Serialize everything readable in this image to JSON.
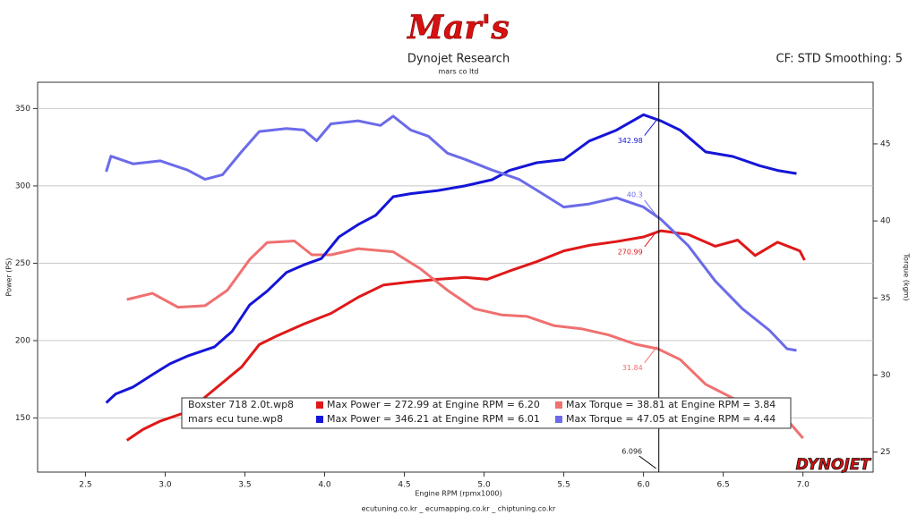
{
  "logo": "Mar's",
  "brand": "DYNOJET",
  "chart_data": {
    "type": "line",
    "title": "Dynojet Research",
    "subtitle": "mars co ltd",
    "settings_label": "CF: STD Smoothing: 5",
    "footer": "ecutuning.co.kr _ ecumapping.co.kr _ chiptuning.co.kr",
    "x_label": "Engine RPM (rpmx1000)",
    "y_label": "Power (PS)",
    "y2_label": "Torque (kgm)",
    "xlim": [
      2.2,
      7.44
    ],
    "ylim": [
      115,
      367
    ],
    "y2lim": [
      23.7,
      49
    ],
    "xticks": [
      2.5,
      {
        "value": 3,
        "label": "3.0"
      },
      3.5,
      {
        "value": 4,
        "label": "4.0"
      },
      4.5,
      {
        "value": 5,
        "label": "5.0"
      },
      5.5,
      {
        "value": 6,
        "label": "6.0"
      },
      6.5,
      {
        "value": 7,
        "label": "7.0"
      }
    ],
    "yticks": [
      150,
      200,
      250,
      300,
      350
    ],
    "y2ticks": [
      25,
      30,
      35,
      40,
      45
    ],
    "grid": true,
    "cursor_x": 6.096,
    "files": [
      "Boxster 718 2.0t.wp8",
      "mars ecu tune.wp8"
    ],
    "series": [
      {
        "name": "Max Power = 272.99 at Engine RPM = 6.20",
        "file": 0,
        "color": "#e01818",
        "axis": "y",
        "cursor_value": 270.99,
        "x": [
          2.76,
          2.86,
          2.97,
          3.14,
          3.31,
          3.48,
          3.59,
          3.7,
          3.87,
          4.04,
          4.21,
          4.37,
          4.54,
          4.71,
          4.88,
          5.02,
          5.16,
          5.33,
          5.5,
          5.66,
          5.83,
          6.0,
          6.11,
          6.28,
          6.45,
          6.59,
          6.7,
          6.84,
          6.98,
          7.01
        ],
        "values": [
          135.5,
          142.5,
          148,
          154,
          168.5,
          183,
          197.4,
          203,
          210.7,
          217.6,
          228,
          236,
          238,
          239.6,
          240.8,
          239.6,
          245,
          251,
          258,
          261.6,
          264,
          267,
          271,
          268.6,
          261,
          265,
          255,
          263.6,
          258,
          252
        ]
      },
      {
        "name": "Max Torque = 38.81 at Engine RPM = 3.84",
        "file": 0,
        "color": "#f07070",
        "axis": "y2",
        "cursor_value": 31.84,
        "x": [
          2.76,
          2.92,
          3.08,
          3.25,
          3.39,
          3.53,
          3.64,
          3.81,
          3.92,
          4.04,
          4.21,
          4.43,
          4.6,
          4.77,
          4.94,
          5.11,
          5.27,
          5.44,
          5.61,
          5.78,
          5.95,
          6.09,
          6.23,
          6.39,
          6.56,
          6.73,
          6.9,
          7.0
        ],
        "values": [
          34.9,
          35.3,
          34.4,
          34.5,
          35.5,
          37.5,
          38.6,
          38.7,
          37.8,
          37.8,
          38.2,
          38.0,
          36.9,
          35.5,
          34.3,
          33.9,
          33.8,
          33.2,
          33.0,
          32.6,
          32.0,
          31.7,
          31.0,
          29.4,
          28.5,
          27.7,
          27.1,
          25.9
        ]
      },
      {
        "name": "Max Power = 346.21 at Engine RPM = 6.01",
        "file": 1,
        "color": "#1515d8",
        "axis": "y",
        "cursor_value": 342.98,
        "x": [
          2.63,
          2.69,
          2.8,
          2.92,
          3.03,
          3.14,
          3.31,
          3.42,
          3.53,
          3.64,
          3.76,
          3.87,
          3.98,
          4.09,
          4.21,
          4.32,
          4.43,
          4.54,
          4.71,
          4.88,
          5.05,
          5.16,
          5.33,
          5.5,
          5.66,
          5.83,
          6.0,
          6.11,
          6.23,
          6.39,
          6.56,
          6.73,
          6.84,
          6.96
        ],
        "values": [
          159.8,
          165.5,
          170,
          178,
          185,
          190,
          196,
          206,
          223,
          232,
          244,
          249,
          253,
          267,
          275,
          281,
          293,
          295,
          297,
          300,
          304,
          310,
          315,
          317,
          329,
          336,
          346,
          342,
          336,
          322,
          319,
          313,
          310,
          308
        ]
      },
      {
        "name": "Max Torque = 47.05 at Engine RPM = 4.44",
        "file": 1,
        "color": "#6b6bea",
        "axis": "y2",
        "cursor_value": 40.3,
        "x": [
          2.63,
          2.66,
          2.8,
          2.97,
          3.14,
          3.25,
          3.36,
          3.48,
          3.59,
          3.76,
          3.87,
          3.95,
          4.04,
          4.21,
          4.35,
          4.43,
          4.54,
          4.65,
          4.77,
          4.88,
          5.05,
          5.22,
          5.33,
          5.5,
          5.66,
          5.83,
          6.0,
          6.11,
          6.28,
          6.45,
          6.62,
          6.79,
          6.9,
          6.96
        ],
        "values": [
          43.2,
          44.2,
          43.7,
          43.9,
          43.3,
          42.7,
          43.0,
          44.5,
          45.8,
          46.0,
          45.9,
          45.2,
          46.3,
          46.5,
          46.2,
          46.8,
          45.9,
          45.5,
          44.4,
          44.0,
          43.3,
          42.7,
          42.0,
          40.9,
          41.1,
          41.5,
          40.9,
          40.1,
          38.4,
          36.1,
          34.3,
          32.9,
          31.7,
          31.6
        ]
      }
    ]
  }
}
